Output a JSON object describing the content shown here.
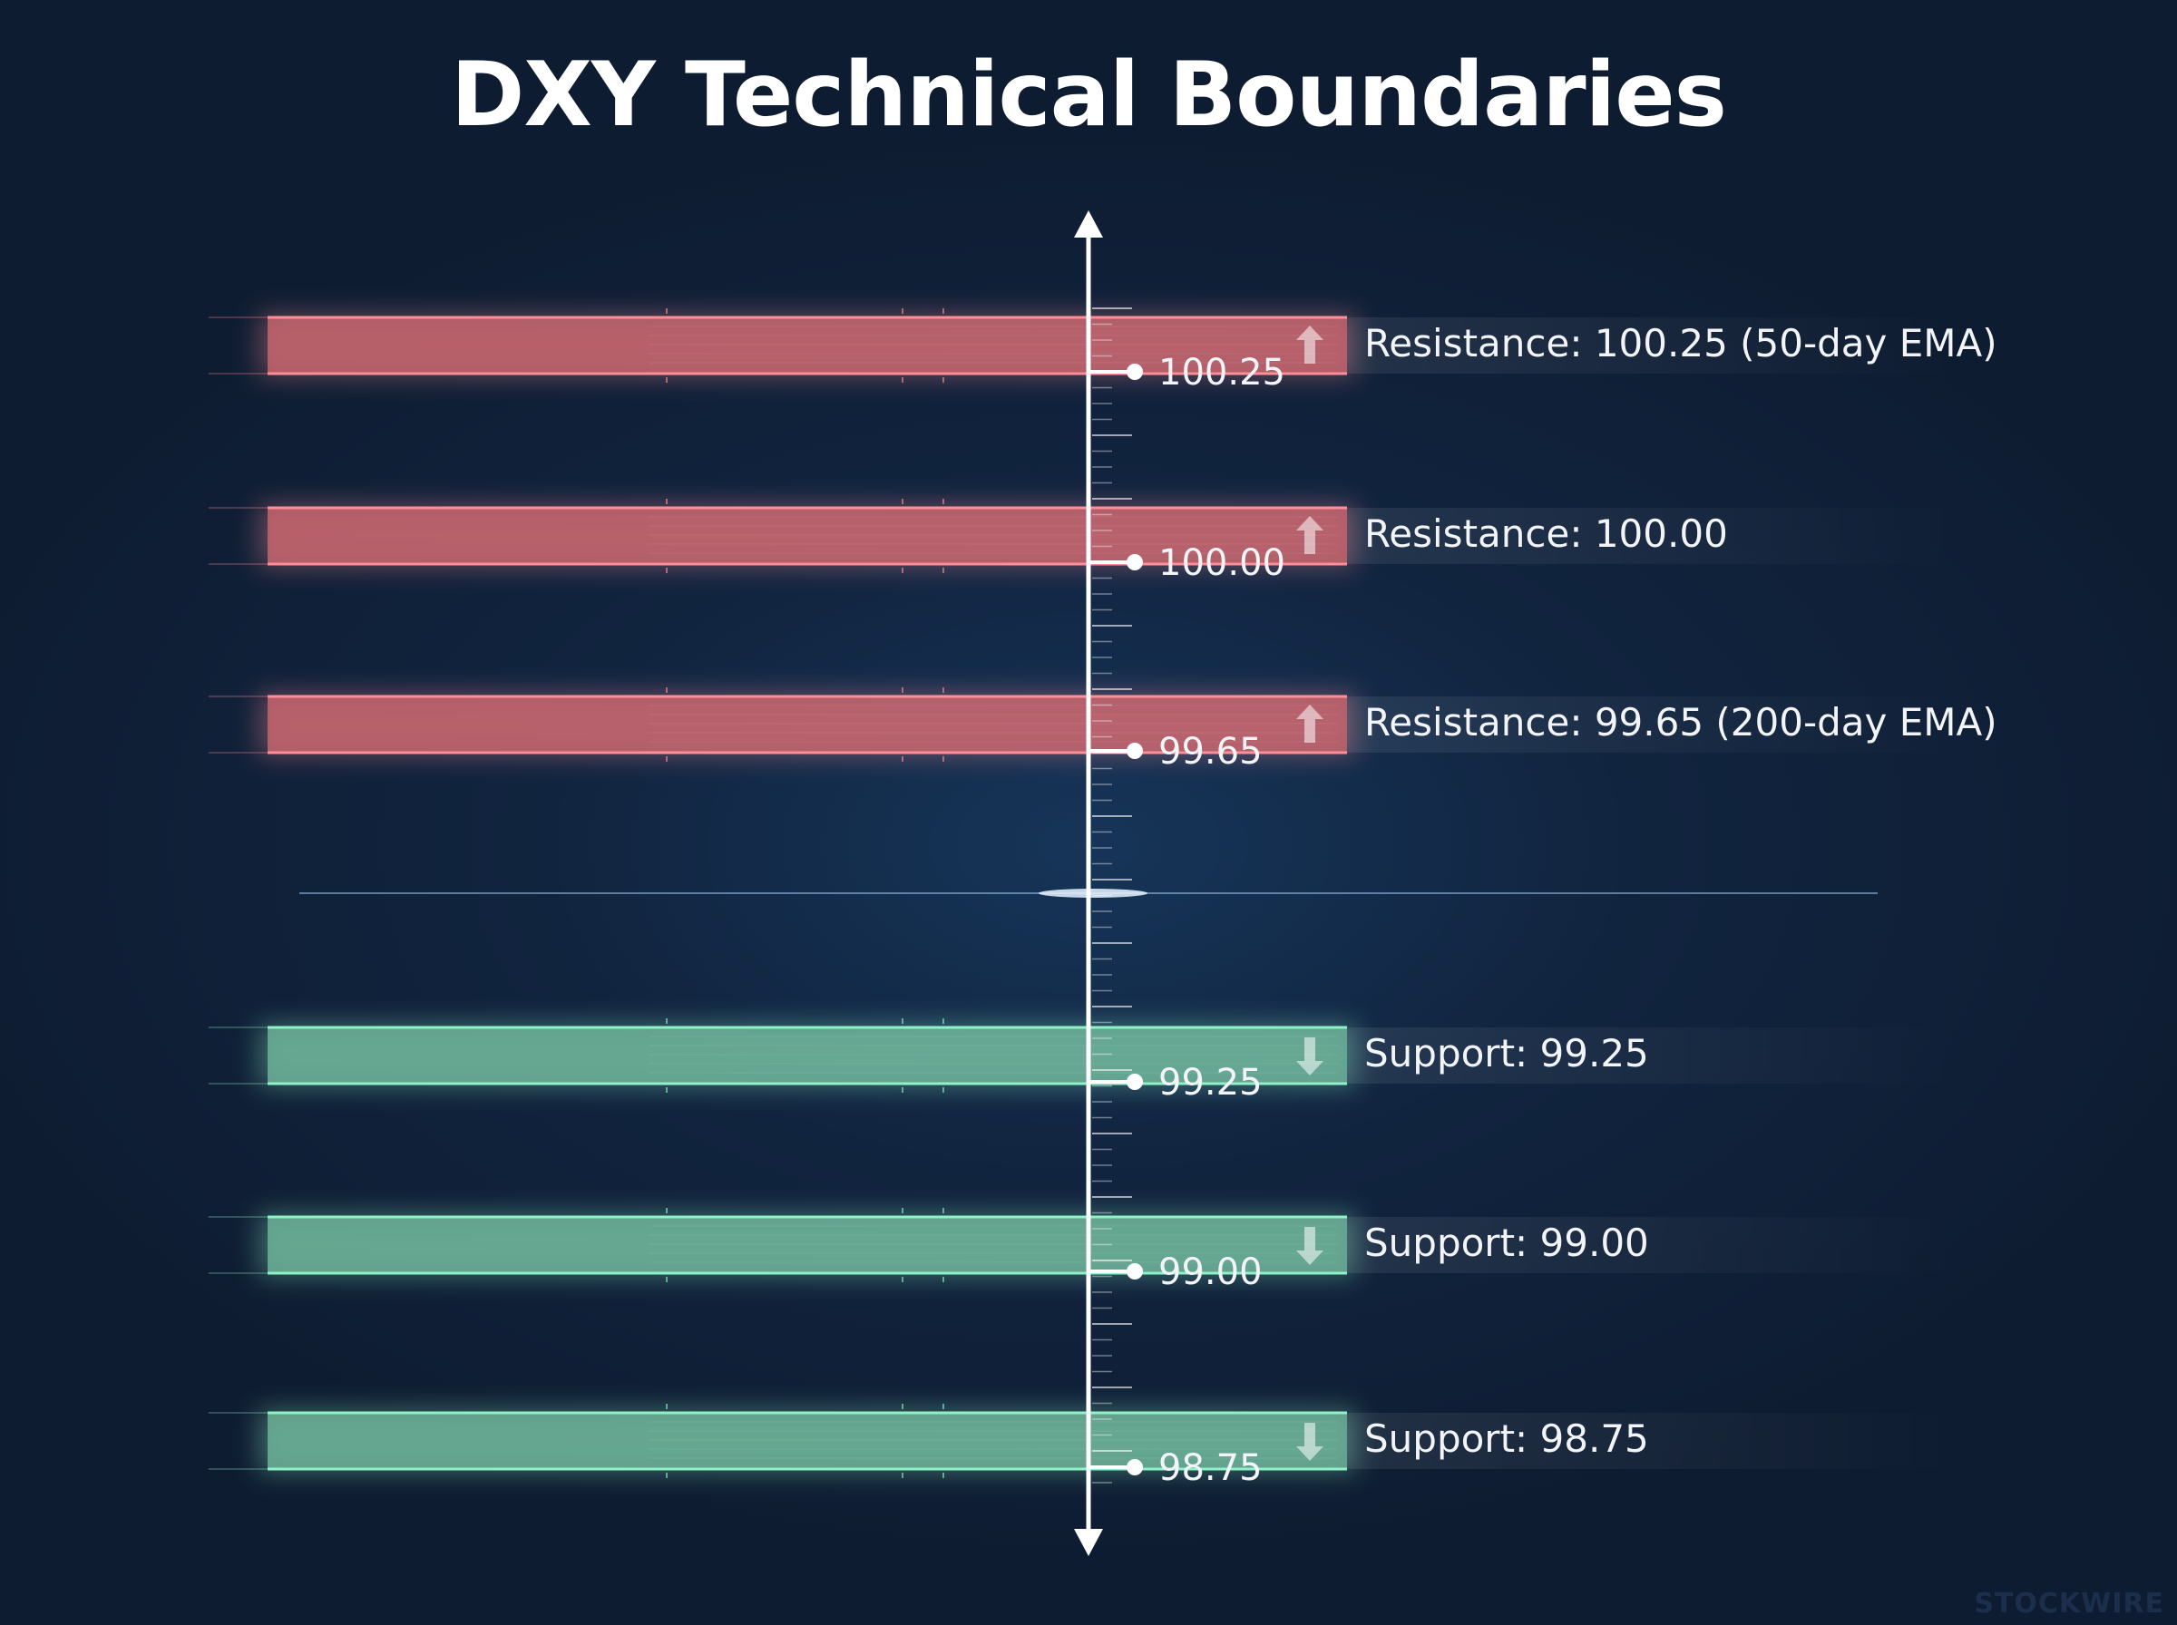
{
  "chart_data": {
    "type": "level-chart",
    "title": "DXY Technical Boundaries",
    "axis": "vertical",
    "levels": [
      {
        "value": 100.25,
        "tick_label": "100.25",
        "kind": "resistance",
        "label": "Resistance: 100.25 (50-day EMA)"
      },
      {
        "value": 100.0,
        "tick_label": "100.00",
        "kind": "resistance",
        "label": "Resistance: 100.00"
      },
      {
        "value": 99.65,
        "tick_label": "99.65",
        "kind": "resistance",
        "label": "Resistance: 99.65 (200-day EMA)"
      },
      {
        "value": 99.25,
        "tick_label": "99.25",
        "kind": "support",
        "label": "Support: 99.25"
      },
      {
        "value": 99.0,
        "tick_label": "99.00",
        "kind": "support",
        "label": "Support: 99.00"
      },
      {
        "value": 98.75,
        "tick_label": "98.75",
        "kind": "support",
        "label": "Support: 98.75"
      }
    ]
  },
  "colors": {
    "resistance_fill": "#c9676f",
    "resistance_edge": "#ff8f96",
    "support_fill": "#6fb49a",
    "support_edge": "#8ff2c6",
    "axis": "#ffffff",
    "midline": "#8fb4dd"
  },
  "icons": {
    "resistance": "arrow-up-icon",
    "support": "arrow-down-icon"
  },
  "watermark": "STOCKWIRE"
}
